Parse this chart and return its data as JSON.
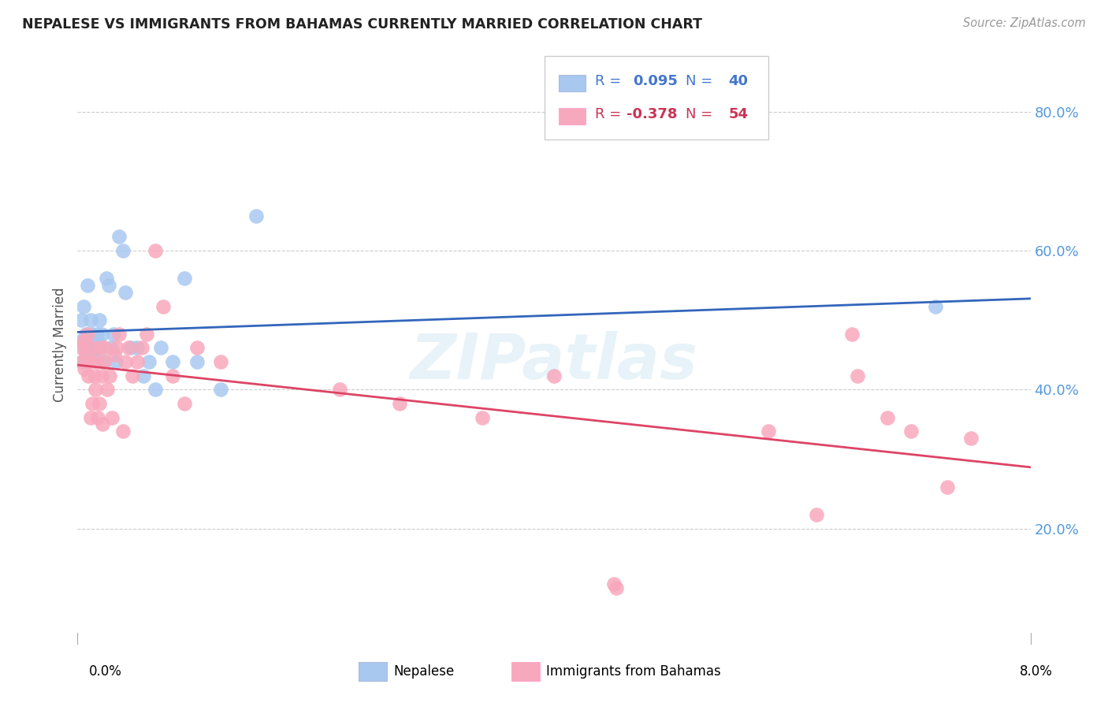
{
  "title": "NEPALESE VS IMMIGRANTS FROM BAHAMAS CURRENTLY MARRIED CORRELATION CHART",
  "source": "Source: ZipAtlas.com",
  "ylabel": "Currently Married",
  "xlim": [
    0.0,
    8.0
  ],
  "ylim": [
    5.0,
    88.0
  ],
  "yticks": [
    20.0,
    40.0,
    60.0,
    80.0
  ],
  "blue_color": "#A8C8F0",
  "pink_color": "#F8A8BC",
  "blue_line_color": "#3366BB",
  "pink_line_color": "#DD4466",
  "background_color": "#FFFFFF",
  "grid_color": "#CCCCCC",
  "nepalese_x": [
    0.02,
    0.03,
    0.04,
    0.05,
    0.06,
    0.07,
    0.08,
    0.09,
    0.1,
    0.11,
    0.12,
    0.13,
    0.14,
    0.15,
    0.16,
    0.17,
    0.18,
    0.19,
    0.2,
    0.22,
    0.24,
    0.26,
    0.28,
    0.3,
    0.32,
    0.35,
    0.38,
    0.4,
    0.45,
    0.5,
    0.55,
    0.6,
    0.65,
    0.7,
    0.8,
    0.9,
    1.0,
    1.2,
    1.5,
    7.2
  ],
  "nepalese_y": [
    47.0,
    50.0,
    44.0,
    52.0,
    46.0,
    48.0,
    55.0,
    47.0,
    46.0,
    50.0,
    48.0,
    45.0,
    47.0,
    46.0,
    48.0,
    47.0,
    50.0,
    46.0,
    48.0,
    44.0,
    56.0,
    55.0,
    46.0,
    48.0,
    44.0,
    62.0,
    60.0,
    54.0,
    46.0,
    46.0,
    42.0,
    44.0,
    40.0,
    46.0,
    44.0,
    56.0,
    44.0,
    40.0,
    65.0,
    52.0
  ],
  "bahamas_x": [
    0.03,
    0.04,
    0.05,
    0.06,
    0.07,
    0.08,
    0.09,
    0.1,
    0.11,
    0.12,
    0.13,
    0.14,
    0.15,
    0.16,
    0.17,
    0.18,
    0.19,
    0.2,
    0.21,
    0.22,
    0.23,
    0.25,
    0.27,
    0.29,
    0.31,
    0.33,
    0.35,
    0.38,
    0.4,
    0.43,
    0.46,
    0.5,
    0.54,
    0.58,
    0.65,
    0.72,
    0.8,
    0.9,
    1.0,
    1.2,
    2.2,
    2.7,
    3.4,
    4.0,
    4.5,
    4.52,
    5.8,
    6.2,
    6.5,
    6.55,
    6.8,
    7.0,
    7.3,
    7.5
  ],
  "bahamas_y": [
    46.0,
    44.0,
    47.0,
    43.0,
    45.0,
    48.0,
    42.0,
    44.0,
    36.0,
    38.0,
    46.0,
    42.0,
    40.0,
    44.0,
    36.0,
    38.0,
    46.0,
    42.0,
    35.0,
    44.0,
    46.0,
    40.0,
    42.0,
    36.0,
    45.0,
    46.0,
    48.0,
    34.0,
    44.0,
    46.0,
    42.0,
    44.0,
    46.0,
    48.0,
    60.0,
    52.0,
    42.0,
    38.0,
    46.0,
    44.0,
    40.0,
    38.0,
    36.0,
    42.0,
    12.0,
    11.5,
    34.0,
    22.0,
    48.0,
    42.0,
    36.0,
    34.0,
    26.0,
    33.0
  ]
}
